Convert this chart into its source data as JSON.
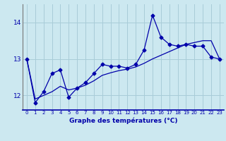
{
  "xlabel": "Graphe des températures (°C)",
  "background_color": "#cce8f0",
  "grid_color": "#a8ccd8",
  "line_color": "#0000aa",
  "hours": [
    0,
    1,
    2,
    3,
    4,
    5,
    6,
    7,
    8,
    9,
    10,
    11,
    12,
    13,
    14,
    15,
    16,
    17,
    18,
    19,
    20,
    21,
    22,
    23
  ],
  "temps": [
    13.0,
    11.8,
    12.1,
    12.6,
    12.7,
    11.95,
    12.2,
    12.35,
    12.6,
    12.85,
    12.8,
    12.8,
    12.75,
    12.85,
    13.25,
    14.2,
    13.6,
    13.4,
    13.35,
    13.4,
    13.35,
    13.35,
    13.05,
    13.0
  ],
  "smooth": [
    13.0,
    11.9,
    12.0,
    12.1,
    12.25,
    12.15,
    12.2,
    12.28,
    12.4,
    12.55,
    12.62,
    12.68,
    12.72,
    12.78,
    12.88,
    13.0,
    13.1,
    13.2,
    13.3,
    13.4,
    13.45,
    13.5,
    13.5,
    13.0
  ],
  "ylim": [
    11.6,
    14.5
  ],
  "yticks": [
    12,
    13,
    14
  ],
  "xlim": [
    -0.5,
    23.5
  ]
}
